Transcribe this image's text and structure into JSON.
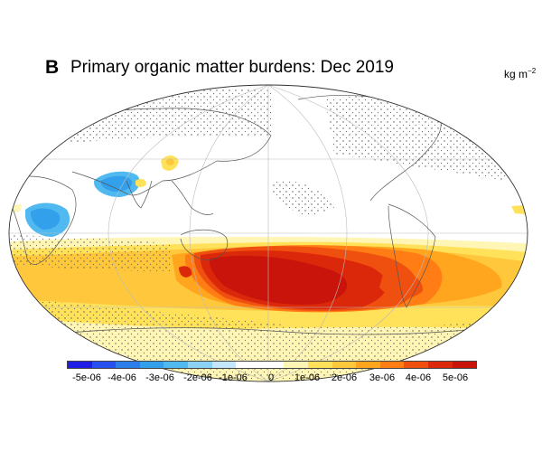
{
  "figure": {
    "panel_label": "B",
    "title": "Primary organic matter burdens: Dec 2019",
    "units_base": "kg m",
    "units_exponent": "−2"
  },
  "colorbar": {
    "tick_labels": [
      "-5e-06",
      "-4e-06",
      "-3e-06",
      "-2e-06",
      "-1e-06",
      "0",
      "1e-06",
      "2e-06",
      "3e-06",
      "4e-06",
      "5e-06"
    ],
    "colors": [
      "#1e1ee6",
      "#2850f0",
      "#2d7deb",
      "#32a0eb",
      "#50b9f0",
      "#8cd2f5",
      "#c3e6fa",
      "#ffffff",
      "#ffffff",
      "#fff5b4",
      "#ffe15a",
      "#ffc83c",
      "#ffa51e",
      "#ff7d14",
      "#f0500f",
      "#dc280a",
      "#c8140a"
    ]
  }
}
